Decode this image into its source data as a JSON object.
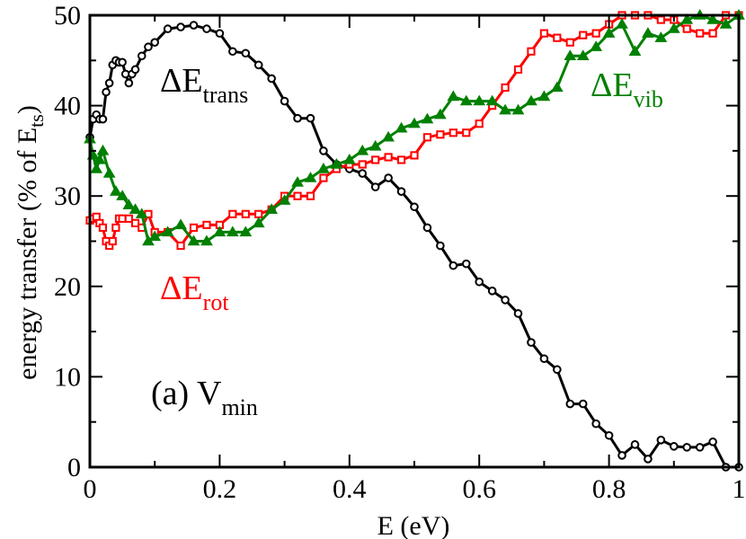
{
  "chart_data": {
    "type": "line",
    "title": "",
    "xlabel": "E (eV)",
    "ylabel_parts": {
      "main": "energy transfer (% of E",
      "sub": "ts",
      "close": ")"
    },
    "xlim": [
      0,
      1
    ],
    "ylim": [
      0,
      50
    ],
    "xticks": [
      0,
      0.2,
      0.4,
      0.6,
      0.8,
      1
    ],
    "xtick_labels": [
      "0",
      "0.2",
      "0.4",
      "0.6",
      "0.8",
      "1"
    ],
    "yticks": [
      0,
      10,
      20,
      30,
      40,
      50
    ],
    "ytick_labels": [
      "0",
      "10",
      "20",
      "30",
      "40",
      "50"
    ],
    "panel_label": {
      "main": "(a) V",
      "sub": "min"
    },
    "series": [
      {
        "name": "ΔE_trans",
        "label_main": "ΔE",
        "label_sub": "trans",
        "color": "#000000",
        "marker": "circle",
        "x": [
          0.0,
          0.005,
          0.01,
          0.015,
          0.02,
          0.025,
          0.03,
          0.035,
          0.04,
          0.045,
          0.05,
          0.055,
          0.06,
          0.065,
          0.07,
          0.08,
          0.09,
          0.1,
          0.12,
          0.14,
          0.16,
          0.18,
          0.2,
          0.22,
          0.24,
          0.26,
          0.28,
          0.3,
          0.32,
          0.34,
          0.36,
          0.38,
          0.4,
          0.42,
          0.44,
          0.46,
          0.48,
          0.5,
          0.52,
          0.54,
          0.56,
          0.58,
          0.6,
          0.62,
          0.64,
          0.66,
          0.68,
          0.7,
          0.72,
          0.74,
          0.76,
          0.78,
          0.8,
          0.82,
          0.84,
          0.86,
          0.88,
          0.9,
          0.92,
          0.94,
          0.96,
          0.98,
          1.0
        ],
        "y": [
          36.5,
          38.5,
          39.0,
          38.5,
          38.5,
          41.5,
          42.5,
          44.5,
          45.0,
          44.8,
          44.8,
          43.5,
          42.5,
          43.5,
          44.0,
          45.5,
          46.5,
          47.0,
          48.5,
          48.7,
          48.9,
          48.5,
          48.0,
          46.0,
          45.8,
          44.5,
          43.0,
          40.5,
          38.6,
          38.6,
          35.0,
          33.5,
          33.0,
          32.5,
          31.0,
          32.0,
          30.5,
          28.8,
          26.5,
          24.5,
          22.3,
          22.5,
          20.5,
          19.5,
          18.5,
          17.0,
          13.8,
          12.0,
          10.8,
          7.0,
          7.0,
          4.8,
          3.5,
          1.3,
          2.5,
          0.9,
          3.0,
          2.3,
          2.2,
          2.2,
          2.8,
          0.0,
          0.0
        ]
      },
      {
        "name": "ΔE_rot",
        "label_main": "ΔE",
        "label_sub": "rot",
        "color": "#ff0000",
        "marker": "square",
        "x": [
          0.0,
          0.005,
          0.01,
          0.015,
          0.02,
          0.025,
          0.03,
          0.035,
          0.04,
          0.045,
          0.05,
          0.06,
          0.07,
          0.08,
          0.09,
          0.1,
          0.12,
          0.14,
          0.16,
          0.18,
          0.2,
          0.22,
          0.24,
          0.26,
          0.28,
          0.3,
          0.32,
          0.34,
          0.36,
          0.38,
          0.4,
          0.42,
          0.44,
          0.46,
          0.48,
          0.5,
          0.52,
          0.54,
          0.56,
          0.58,
          0.6,
          0.62,
          0.64,
          0.66,
          0.68,
          0.7,
          0.72,
          0.74,
          0.76,
          0.78,
          0.8,
          0.82,
          0.84,
          0.86,
          0.88,
          0.9,
          0.92,
          0.94,
          0.96,
          0.98,
          1.0
        ],
        "y": [
          27.3,
          27.5,
          27.7,
          27.0,
          26.5,
          25.0,
          24.5,
          25.0,
          26.5,
          27.5,
          27.5,
          27.5,
          27.0,
          26.5,
          28.0,
          26.0,
          26.0,
          24.5,
          26.5,
          26.8,
          26.8,
          28.0,
          28.0,
          28.0,
          28.5,
          30.0,
          30.0,
          30.0,
          32.0,
          33.0,
          33.5,
          33.5,
          34.0,
          34.3,
          34.0,
          34.5,
          36.5,
          36.8,
          37.0,
          37.0,
          38.0,
          40.0,
          42.0,
          44.0,
          46.0,
          48.0,
          47.5,
          47.0,
          47.8,
          48.0,
          49.0,
          50.0,
          50.0,
          50.0,
          49.5,
          49.5,
          48.5,
          48.0,
          48.0,
          50.0,
          50.0
        ]
      },
      {
        "name": "ΔE_vib",
        "label_main": "ΔE",
        "label_sub": "vib",
        "color": "#008000",
        "marker": "triangle",
        "x": [
          0.0,
          0.005,
          0.01,
          0.015,
          0.02,
          0.03,
          0.04,
          0.05,
          0.06,
          0.07,
          0.08,
          0.09,
          0.1,
          0.12,
          0.14,
          0.16,
          0.18,
          0.2,
          0.22,
          0.24,
          0.26,
          0.28,
          0.3,
          0.32,
          0.34,
          0.36,
          0.38,
          0.4,
          0.42,
          0.44,
          0.46,
          0.48,
          0.5,
          0.52,
          0.54,
          0.56,
          0.58,
          0.6,
          0.62,
          0.64,
          0.66,
          0.68,
          0.7,
          0.72,
          0.74,
          0.76,
          0.78,
          0.8,
          0.82,
          0.84,
          0.86,
          0.88,
          0.9,
          0.92,
          0.94,
          0.96,
          0.98,
          1.0
        ],
        "y": [
          36.3,
          34.5,
          33.0,
          34.0,
          35.0,
          32.5,
          30.5,
          30.0,
          29.0,
          28.5,
          28.0,
          25.0,
          25.5,
          26.0,
          26.8,
          25.0,
          25.0,
          26.0,
          26.0,
          26.0,
          27.0,
          28.5,
          29.5,
          31.5,
          32.0,
          33.0,
          33.5,
          34.0,
          35.0,
          35.5,
          36.5,
          37.5,
          38.0,
          38.5,
          39.0,
          41.0,
          40.5,
          40.5,
          40.5,
          39.5,
          39.5,
          40.5,
          41.0,
          42.0,
          45.5,
          45.5,
          46.5,
          48.0,
          49.0,
          46.0,
          48.0,
          47.5,
          48.5,
          49.5,
          50.0,
          49.5,
          49.0,
          50.0
        ]
      }
    ]
  }
}
